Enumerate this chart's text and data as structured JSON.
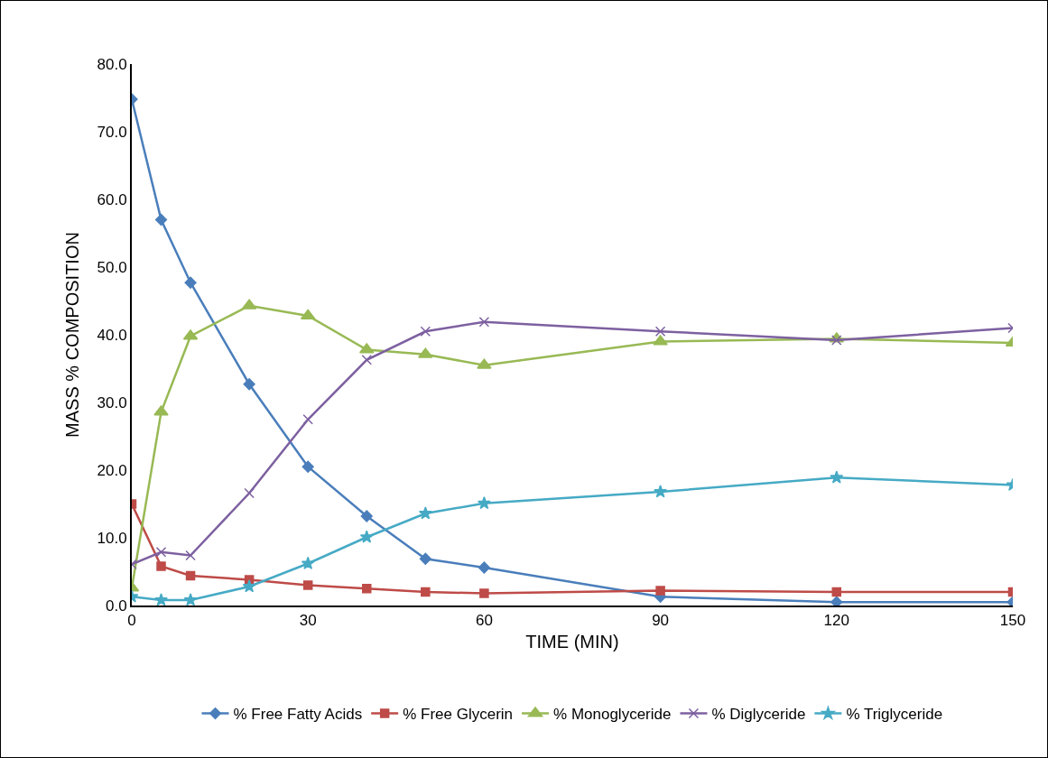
{
  "chart_data": {
    "type": "line",
    "xlabel": "TIME (MIN)",
    "ylabel": "MASS % COMPOSITION",
    "x": [
      0,
      5,
      10,
      20,
      30,
      40,
      50,
      60,
      90,
      120,
      150
    ],
    "xlim": [
      0,
      150
    ],
    "xticks": [
      0,
      30,
      60,
      90,
      120,
      150
    ],
    "ylim": [
      0,
      80
    ],
    "yticks": [
      {
        "value": 0,
        "label": "0.0"
      },
      {
        "value": 10,
        "label": "10.0"
      },
      {
        "value": 20,
        "label": "20.0"
      },
      {
        "value": 30,
        "label": "30.0"
      },
      {
        "value": 40,
        "label": "40.0"
      },
      {
        "value": 50,
        "label": "50.0"
      },
      {
        "value": 60,
        "label": "60.0"
      },
      {
        "value": 70,
        "label": "70.0"
      },
      {
        "value": 80,
        "label": "80.0"
      }
    ],
    "grid": false,
    "legend": "bottom",
    "series": [
      {
        "name": "% Free Fatty Acids",
        "color": "#4a7ebb",
        "marker": "diamond",
        "values": [
          74.8,
          57.0,
          47.7,
          32.7,
          20.5,
          13.2,
          6.9,
          5.6,
          1.3,
          0.5,
          0.5
        ]
      },
      {
        "name": "% Free Glycerin",
        "color": "#be4b48",
        "marker": "square",
        "values": [
          15.0,
          5.8,
          4.4,
          3.8,
          3.0,
          2.5,
          2.0,
          1.8,
          2.2,
          2.0,
          2.0
        ]
      },
      {
        "name": "% Monoglyceride",
        "color": "#98b954",
        "marker": "triangle",
        "values": [
          2.6,
          28.6,
          39.8,
          44.3,
          42.8,
          37.8,
          37.1,
          35.5,
          39.0,
          39.4,
          38.8
        ]
      },
      {
        "name": "% Diglyceride",
        "color": "#7d60a0",
        "marker": "cross",
        "values": [
          6.1,
          7.9,
          7.4,
          16.6,
          27.5,
          36.3,
          40.5,
          41.9,
          40.5,
          39.2,
          41.0
        ]
      },
      {
        "name": "% Triglyceride",
        "color": "#46aac5",
        "marker": "star",
        "values": [
          1.3,
          0.8,
          0.8,
          2.8,
          6.2,
          10.1,
          13.6,
          15.1,
          16.8,
          18.9,
          17.8
        ]
      }
    ]
  }
}
